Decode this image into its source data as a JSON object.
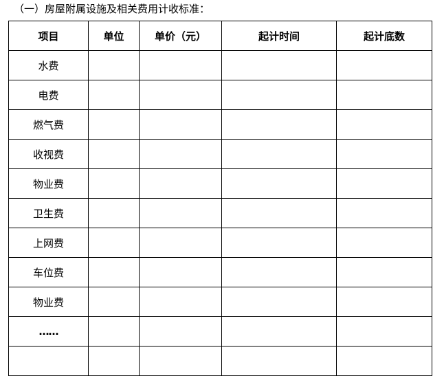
{
  "title": "（一）房屋附属设施及相关费用计收标准：",
  "table": {
    "headers": [
      "项目",
      "单位",
      "单价（元）",
      "起计时间",
      "起计底数"
    ],
    "rows": [
      "水费",
      "电费",
      "燃气费",
      "收视费",
      "物业费",
      "卫生费",
      "上网费",
      "车位费",
      "物业费",
      "……",
      ""
    ]
  }
}
